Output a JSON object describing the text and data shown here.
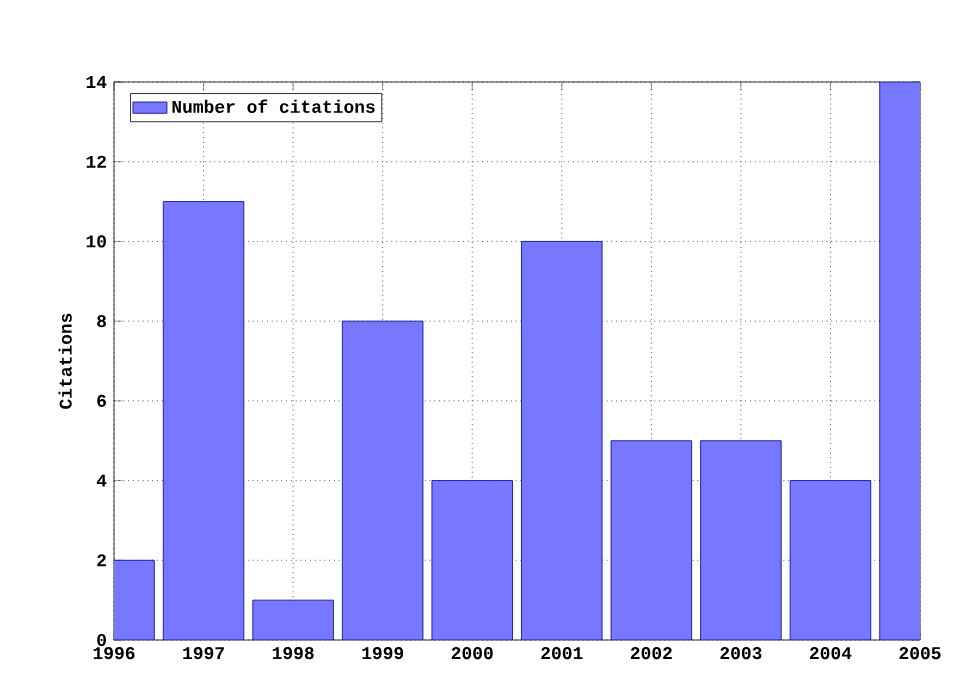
{
  "chart_data": {
    "type": "bar",
    "ylabel": "Citations",
    "x": [
      1996,
      1997,
      1998,
      1999,
      2000,
      2001,
      2002,
      2003,
      2004,
      2005
    ],
    "series": [
      {
        "name": "Number of citations",
        "color": "#7777ff",
        "values": [
          2,
          11,
          1,
          8,
          4,
          10,
          5,
          5,
          4,
          14
        ]
      }
    ],
    "xlim": [
      1996,
      2005
    ],
    "xticks": [
      1996,
      1997,
      1998,
      1999,
      2000,
      2001,
      2002,
      2003,
      2004,
      2005
    ],
    "ylim": [
      0,
      14
    ],
    "yticks": [
      0,
      2,
      4,
      6,
      8,
      10,
      12,
      14
    ],
    "grid": true,
    "legend": "top left"
  }
}
